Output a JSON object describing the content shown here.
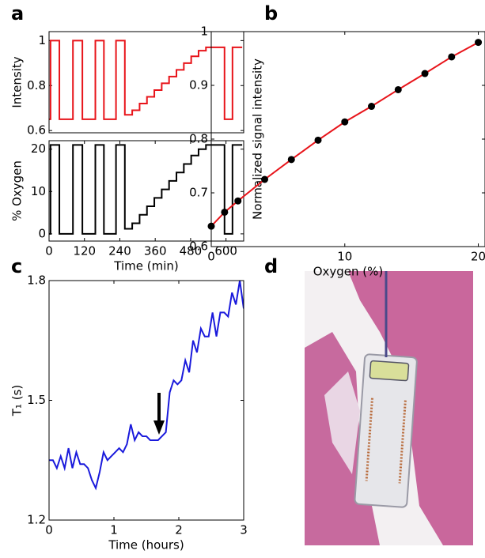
{
  "chart_data": [
    {
      "type": "line",
      "panel_label": "a",
      "ylabel": "Intensity",
      "xlim": [
        0,
        660
      ],
      "ylim": [
        0.59,
        1.04
      ],
      "yticks": [
        0.6,
        0.8,
        1
      ],
      "series": [
        {
          "color": "#e8141a",
          "x": [
            0,
            5,
            5,
            35,
            35,
            81,
            81,
            113,
            113,
            157,
            157,
            186,
            186,
            227,
            227,
            257,
            257,
            282,
            282,
            307,
            307,
            332,
            332,
            357,
            357,
            382,
            382,
            407,
            407,
            432,
            432,
            457,
            457,
            482,
            482,
            507,
            507,
            532,
            532,
            595,
            595,
            622,
            622,
            655
          ],
          "values": [
            0.65,
            0.65,
            1.0,
            1.0,
            0.65,
            0.65,
            1.0,
            1.0,
            0.65,
            0.65,
            1.0,
            1.0,
            0.65,
            0.65,
            1.0,
            1.0,
            0.67,
            0.67,
            0.69,
            0.69,
            0.72,
            0.72,
            0.75,
            0.75,
            0.78,
            0.78,
            0.81,
            0.81,
            0.84,
            0.84,
            0.87,
            0.87,
            0.9,
            0.9,
            0.93,
            0.93,
            0.955,
            0.955,
            0.97,
            0.97,
            0.65,
            0.65,
            0.97,
            0.97
          ]
        }
      ]
    },
    {
      "type": "line",
      "ylabel": "% Oxygen",
      "xlabel": "Time (min)",
      "xlim": [
        0,
        660
      ],
      "xticks": [
        0,
        120,
        240,
        360,
        480,
        600
      ],
      "ylim": [
        -1.7,
        22
      ],
      "yticks": [
        0,
        10,
        20
      ],
      "series": [
        {
          "color": "#000000",
          "x": [
            0,
            5,
            5,
            35,
            35,
            81,
            81,
            113,
            113,
            157,
            157,
            186,
            186,
            227,
            227,
            257,
            257,
            282,
            282,
            307,
            307,
            332,
            332,
            357,
            357,
            382,
            382,
            407,
            407,
            432,
            432,
            457,
            457,
            482,
            482,
            507,
            507,
            532,
            532,
            595,
            595,
            622,
            622,
            655
          ],
          "values": [
            0,
            0,
            21,
            21,
            0,
            0,
            21,
            21,
            0,
            0,
            21,
            21,
            0,
            0,
            21,
            21,
            1.2,
            1.2,
            2.5,
            2.5,
            4.5,
            4.5,
            6.5,
            6.5,
            8.5,
            8.5,
            10.5,
            10.5,
            12.5,
            12.5,
            14.5,
            14.5,
            16.5,
            16.5,
            18.5,
            18.5,
            20,
            20,
            21,
            21,
            0,
            0,
            21,
            21
          ]
        }
      ]
    },
    {
      "type": "scatter",
      "panel_label": "b",
      "ylabel": "Normalized signal intensity",
      "xlabel": "Oxygen (%)",
      "xlim": [
        0,
        20.5
      ],
      "xticks": [
        0,
        10,
        20
      ],
      "ylim": [
        0.6,
        1
      ],
      "yticks": [
        0.6,
        0.7,
        0.8,
        0.9,
        1
      ],
      "series": [
        {
          "color": "#e8141a",
          "marker_color": "#000000",
          "x": [
            0,
            1,
            2,
            4,
            6,
            8,
            10,
            12,
            14,
            16,
            18,
            20
          ],
          "values": [
            0.638,
            0.664,
            0.685,
            0.725,
            0.762,
            0.798,
            0.832,
            0.861,
            0.892,
            0.922,
            0.953,
            0.98
          ]
        }
      ]
    },
    {
      "type": "line",
      "panel_label": "c",
      "ylabel": "T₁ (s)",
      "xlabel": "Time (hours)",
      "xlim": [
        0,
        3
      ],
      "xticks": [
        0,
        1,
        2,
        3
      ],
      "ylim": [
        1.2,
        1.8
      ],
      "yticks": [
        1.2,
        1.5,
        1.8
      ],
      "series": [
        {
          "color": "#1a1adc",
          "x": [
            0,
            0.06,
            0.12,
            0.18,
            0.24,
            0.3,
            0.36,
            0.42,
            0.48,
            0.54,
            0.6,
            0.66,
            0.72,
            0.78,
            0.84,
            0.9,
            0.96,
            1.02,
            1.08,
            1.14,
            1.2,
            1.26,
            1.32,
            1.38,
            1.44,
            1.5,
            1.56,
            1.62,
            1.68,
            1.74,
            1.8,
            1.86,
            1.92,
            1.98,
            2.04,
            2.1,
            2.16,
            2.22,
            2.28,
            2.34,
            2.4,
            2.46,
            2.52,
            2.58,
            2.64,
            2.7,
            2.76,
            2.82,
            2.88,
            2.94,
            3.0
          ],
          "values": [
            1.35,
            1.35,
            1.33,
            1.36,
            1.33,
            1.38,
            1.33,
            1.37,
            1.34,
            1.34,
            1.33,
            1.3,
            1.28,
            1.32,
            1.37,
            1.35,
            1.36,
            1.37,
            1.38,
            1.37,
            1.39,
            1.44,
            1.4,
            1.42,
            1.41,
            1.41,
            1.4,
            1.4,
            1.4,
            1.41,
            1.42,
            1.52,
            1.55,
            1.54,
            1.55,
            1.6,
            1.57,
            1.65,
            1.62,
            1.68,
            1.66,
            1.66,
            1.72,
            1.66,
            1.72,
            1.72,
            1.71,
            1.77,
            1.74,
            1.8,
            1.73
          ]
        }
      ]
    },
    {
      "type": "image",
      "panel_label": "d"
    }
  ]
}
